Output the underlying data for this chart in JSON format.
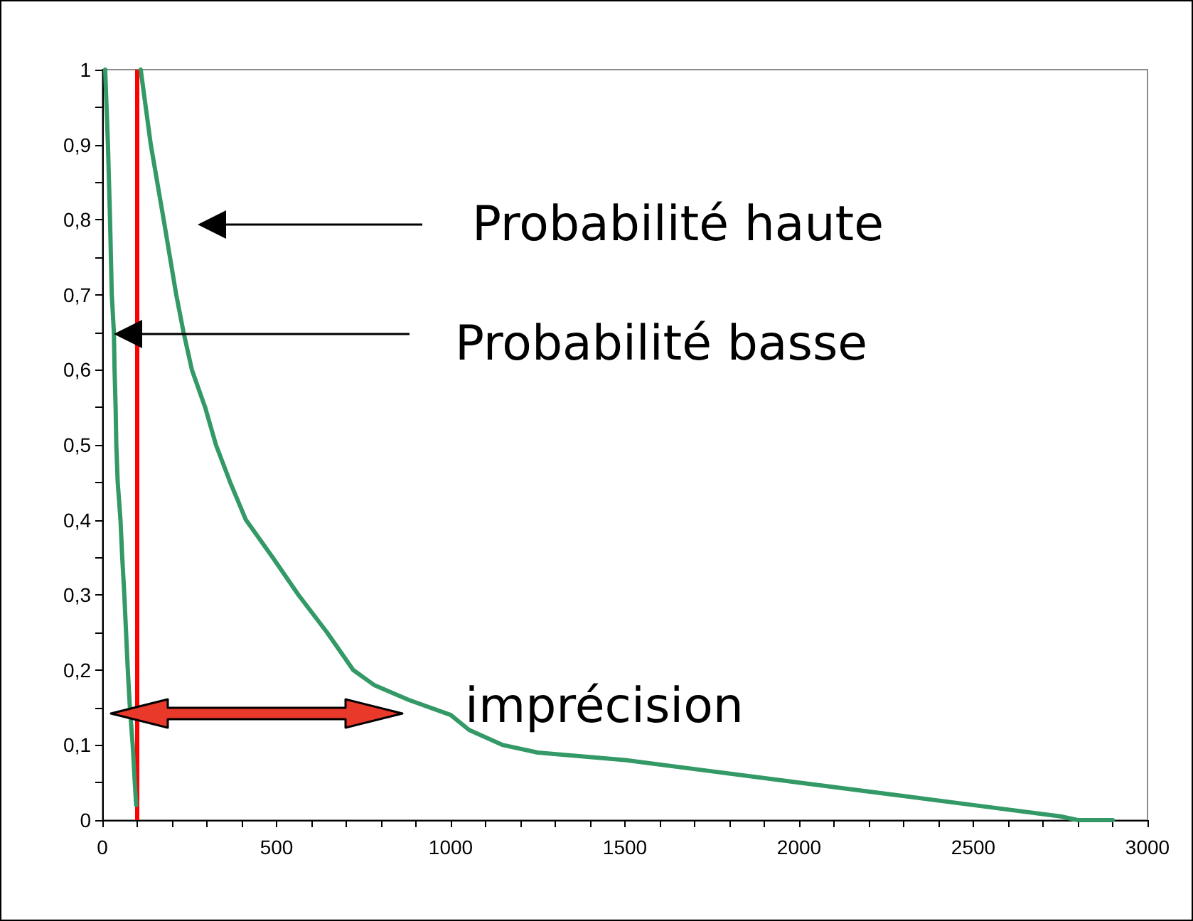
{
  "chart_data": {
    "type": "line",
    "series": [
      {
        "color": "#339966",
        "x": [
          8,
          16,
          22,
          27,
          33,
          35,
          38,
          40,
          44,
          52,
          57,
          63,
          68,
          73,
          79,
          87,
          93,
          97
        ],
        "values": [
          1,
          0.9,
          0.8,
          0.7,
          0.65,
          0.6,
          0.55,
          0.5,
          0.45,
          0.4,
          0.35,
          0.3,
          0.25,
          0.2,
          0.15,
          0.1,
          0.05,
          0.02
        ]
      },
      {
        "color": "#339966",
        "x": [
          110,
          139,
          176,
          212,
          233,
          257,
          295,
          326,
          367,
          412,
          489,
          563,
          645,
          720,
          780,
          880,
          1000,
          1053,
          1150,
          1250,
          1500,
          1750,
          2000,
          2250,
          2500,
          2750,
          2800,
          2900
        ],
        "values": [
          1,
          0.9,
          0.8,
          0.7,
          0.65,
          0.6,
          0.55,
          0.5,
          0.45,
          0.4,
          0.35,
          0.3,
          0.25,
          0.2,
          0.18,
          0.16,
          0.14,
          0.12,
          0.1,
          0.09,
          0.08,
          0.065,
          0.05,
          0.035,
          0.02,
          0.005,
          0,
          0
        ]
      }
    ],
    "xlim": [
      0,
      3000
    ],
    "xticks": [
      0,
      {
        "value": 100,
        "label": null
      },
      {
        "value": 200,
        "label": null
      },
      {
        "value": 300,
        "label": null
      },
      {
        "value": 400,
        "label": null
      },
      500,
      {
        "value": 600,
        "label": null
      },
      {
        "value": 700,
        "label": null
      },
      {
        "value": 800,
        "label": null
      },
      {
        "value": 900,
        "label": null
      },
      1000,
      {
        "value": 1100,
        "label": null
      },
      {
        "value": 1200,
        "label": null
      },
      {
        "value": 1300,
        "label": null
      },
      {
        "value": 1400,
        "label": null
      },
      1500,
      {
        "value": 1600,
        "label": null
      },
      {
        "value": 1700,
        "label": null
      },
      {
        "value": 1800,
        "label": null
      },
      {
        "value": 1900,
        "label": null
      },
      2000,
      {
        "value": 2100,
        "label": null
      },
      {
        "value": 2200,
        "label": null
      },
      {
        "value": 2300,
        "label": null
      },
      {
        "value": 2400,
        "label": null
      },
      2500,
      {
        "value": 2600,
        "label": null
      },
      {
        "value": 2700,
        "label": null
      },
      {
        "value": 2800,
        "label": null
      },
      {
        "value": 2900,
        "label": null
      },
      3000
    ],
    "ylim": [
      0,
      1
    ],
    "yticks": [
      0,
      {
        "value": 0.05,
        "label": null
      },
      {
        "value": 0.1,
        "label": "0,1"
      },
      {
        "value": 0.15,
        "label": null
      },
      {
        "value": 0.2,
        "label": "0,2"
      },
      {
        "value": 0.25,
        "label": null
      },
      {
        "value": 0.3,
        "label": "0,3"
      },
      {
        "value": 0.35,
        "label": null
      },
      {
        "value": 0.4,
        "label": "0,4"
      },
      {
        "value": 0.45,
        "label": null
      },
      {
        "value": 0.5,
        "label": "0,5"
      },
      {
        "value": 0.55,
        "label": null
      },
      {
        "value": 0.6,
        "label": "0,6"
      },
      {
        "value": 0.65,
        "label": null
      },
      {
        "value": 0.7,
        "label": "0,7"
      },
      {
        "value": 0.75,
        "label": null
      },
      {
        "value": 0.8,
        "label": "0,8"
      },
      {
        "value": 0.85,
        "label": null
      },
      {
        "value": 0.9,
        "label": "0,9"
      },
      {
        "value": 0.95,
        "label": null
      },
      1
    ],
    "grid": false,
    "marker": "none",
    "ref_lines": [
      {
        "axis": "x",
        "value": 100,
        "color": "#ff0000"
      }
    ],
    "annotations": [
      "Probabilité haute",
      "Probabilité basse",
      "imprécision"
    ]
  }
}
